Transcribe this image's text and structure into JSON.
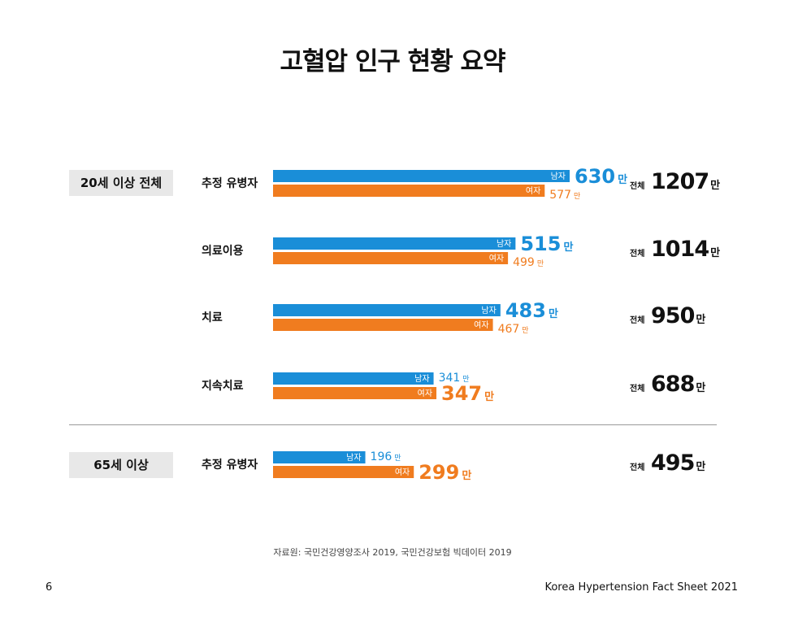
{
  "title": "고혈압 인구 현황 요약",
  "groups": {
    "adult": "20세 이상 전체",
    "senior": "65세 이상"
  },
  "colors": {
    "male": "#1a8ed8",
    "female": "#f07c1f"
  },
  "labels": {
    "male": "남자",
    "female": "여자",
    "unit": "만",
    "total": "전체"
  },
  "chart_data": {
    "type": "bar",
    "orientation": "horizontal",
    "categories": [
      "추정 유병자",
      "의료이용",
      "치료",
      "지속치료",
      "추정 유병자"
    ],
    "series": [
      {
        "name": "남자",
        "values": [
          630,
          515,
          483,
          341,
          196
        ]
      },
      {
        "name": "여자",
        "values": [
          577,
          499,
          467,
          347,
          299
        ]
      }
    ],
    "totals": [
      1207,
      1014,
      950,
      688,
      495
    ],
    "total_texts": [
      "1207",
      "1014",
      "950",
      "688",
      "495"
    ],
    "unit": "만",
    "groups": [
      "20세 이상 전체",
      "20세 이상 전체",
      "20세 이상 전체",
      "20세 이상 전체",
      "65세 이상"
    ]
  },
  "source": "자료원: 국민건강영양조사 2019, 국민건강보험 빅데이터 2019",
  "page_number": "6",
  "footer": "Korea Hypertension Fact Sheet 2021"
}
